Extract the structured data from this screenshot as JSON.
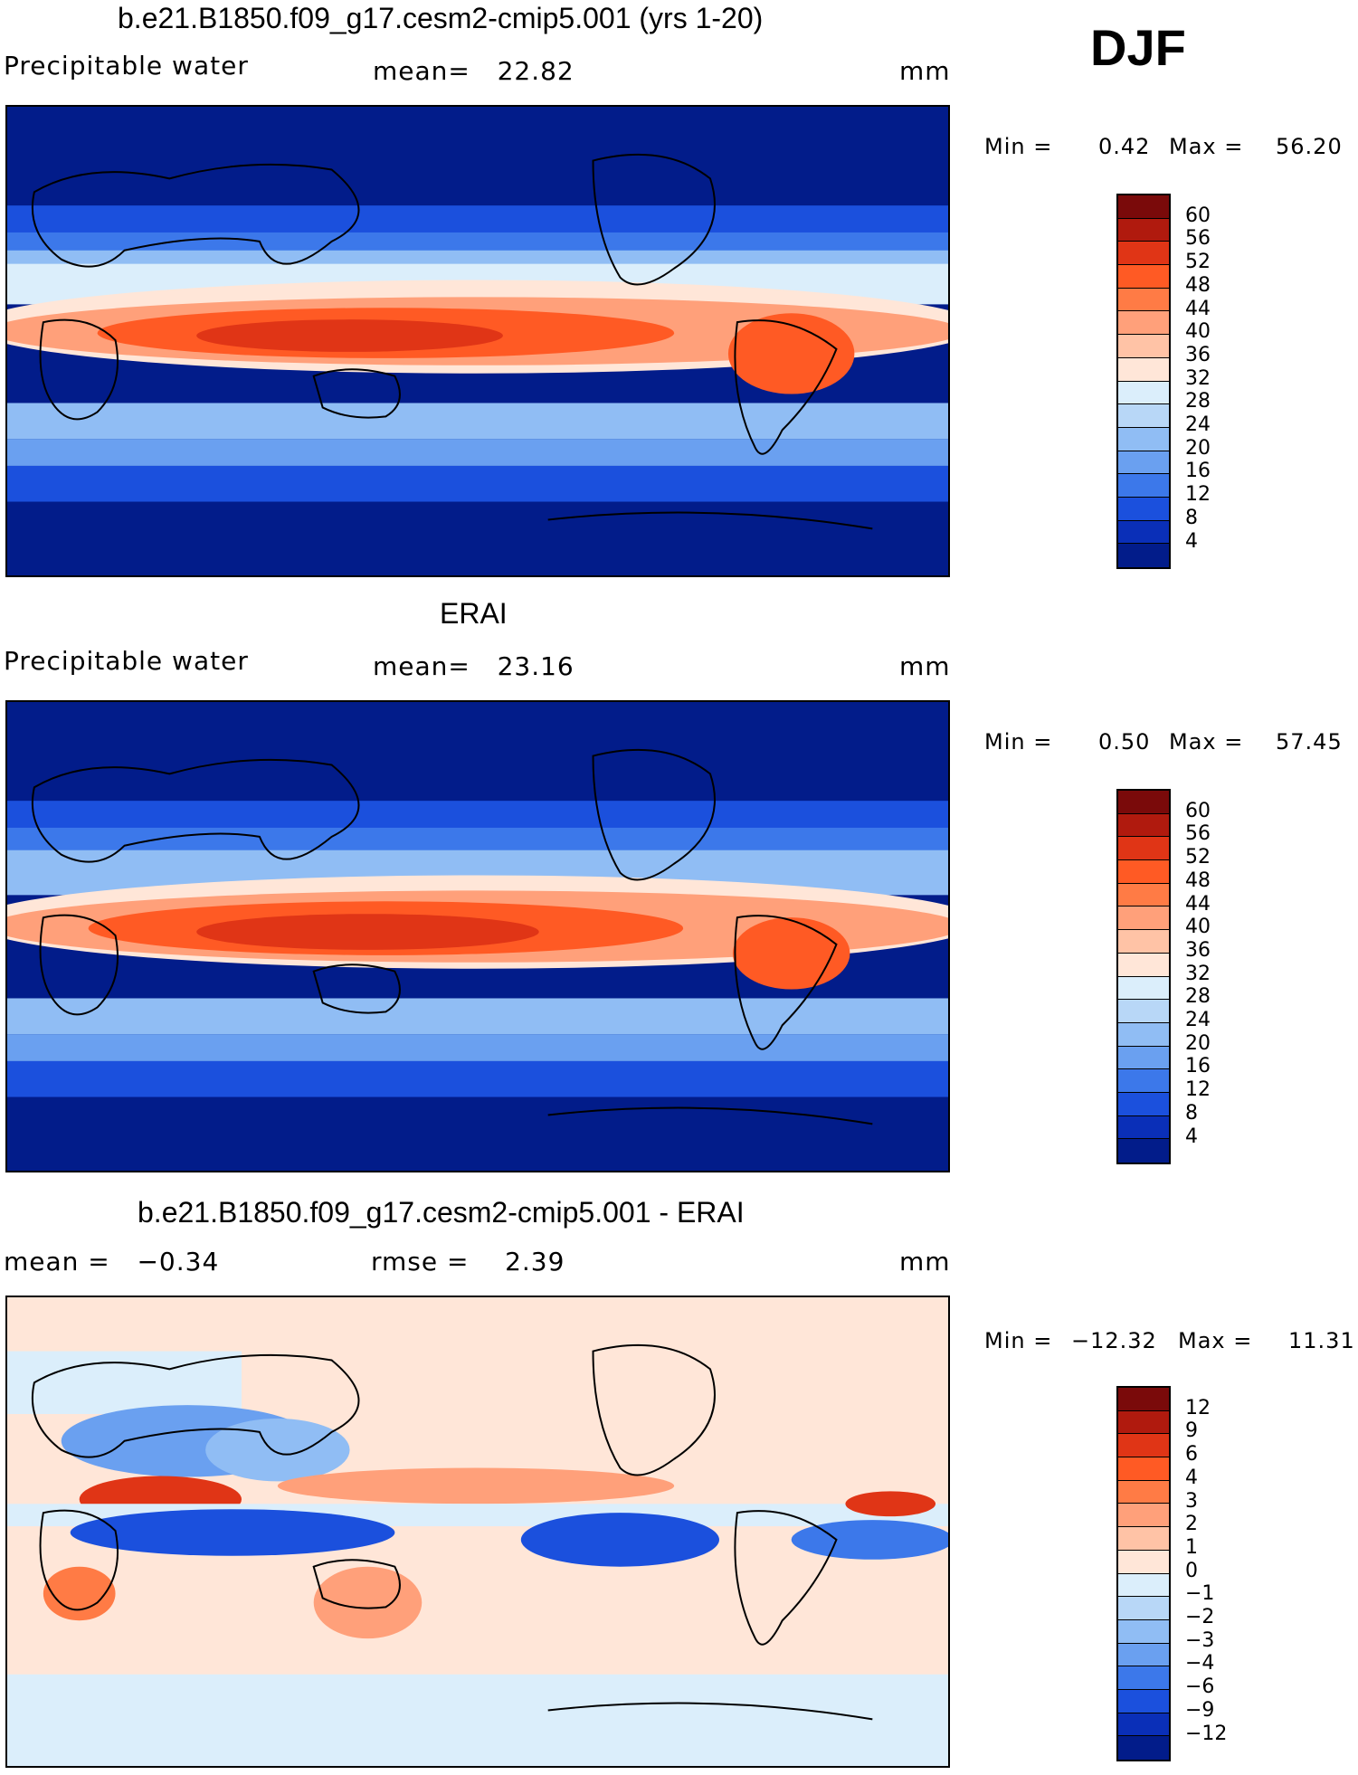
{
  "season": "DJF",
  "units": "mm",
  "panels": [
    {
      "title": "b.e21.B1850.f09_g17.cesm2-cmip5.001 (yrs 1-20)",
      "variable": "Precipitable water",
      "stat_left": "",
      "stat_mid": "mean=   22.82",
      "units": "mm",
      "min_label": "Min =",
      "min_value": "0.42",
      "max_label": "Max =",
      "max_value": "56.20",
      "colorbar_ticks": [
        "60",
        "56",
        "52",
        "48",
        "44",
        "40",
        "36",
        "32",
        "28",
        "24",
        "20",
        "16",
        "12",
        "8",
        "4"
      ]
    },
    {
      "title": "ERAI",
      "variable": "Precipitable water",
      "stat_left": "",
      "stat_mid": "mean=   23.16",
      "units": "mm",
      "min_label": "Min =",
      "min_value": "0.50",
      "max_label": "Max =",
      "max_value": "57.45",
      "colorbar_ticks": [
        "60",
        "56",
        "52",
        "48",
        "44",
        "40",
        "36",
        "32",
        "28",
        "24",
        "20",
        "16",
        "12",
        "8",
        "4"
      ]
    },
    {
      "title": "b.e21.B1850.f09_g17.cesm2-cmip5.001 - ERAI",
      "variable": "",
      "stat_left": "mean =   −0.34",
      "stat_mid": "rmse =    2.39",
      "units": "mm",
      "min_label": "Min =",
      "min_value": "−12.32",
      "max_label": "Max =",
      "max_value": "11.31",
      "colorbar_ticks": [
        "12",
        "9",
        "6",
        "4",
        "3",
        "2",
        "1",
        "0",
        "−1",
        "−2",
        "−3",
        "−4",
        "−6",
        "−9",
        "−12"
      ]
    }
  ],
  "colors": {
    "abs_scale": [
      "#7a0a0a",
      "#b01a0e",
      "#e03516",
      "#ff5a24",
      "#ff7b45",
      "#ffa07a",
      "#ffc3a6",
      "#ffe6d8",
      "#dbeefb",
      "#b8d7f7",
      "#90bdf4",
      "#6aa0f0",
      "#3c78ea",
      "#1b50dd",
      "#0a2fb8",
      "#021c8a"
    ],
    "diff_scale": [
      "#7a0a0a",
      "#b01a0e",
      "#e03516",
      "#ff5a24",
      "#ff7b45",
      "#ffa07a",
      "#ffc3a6",
      "#ffe6d8",
      "#dbeefb",
      "#b8d7f7",
      "#90bdf4",
      "#6aa0f0",
      "#3c78ea",
      "#1b50dd",
      "#0a2fb8",
      "#021c8a"
    ]
  }
}
